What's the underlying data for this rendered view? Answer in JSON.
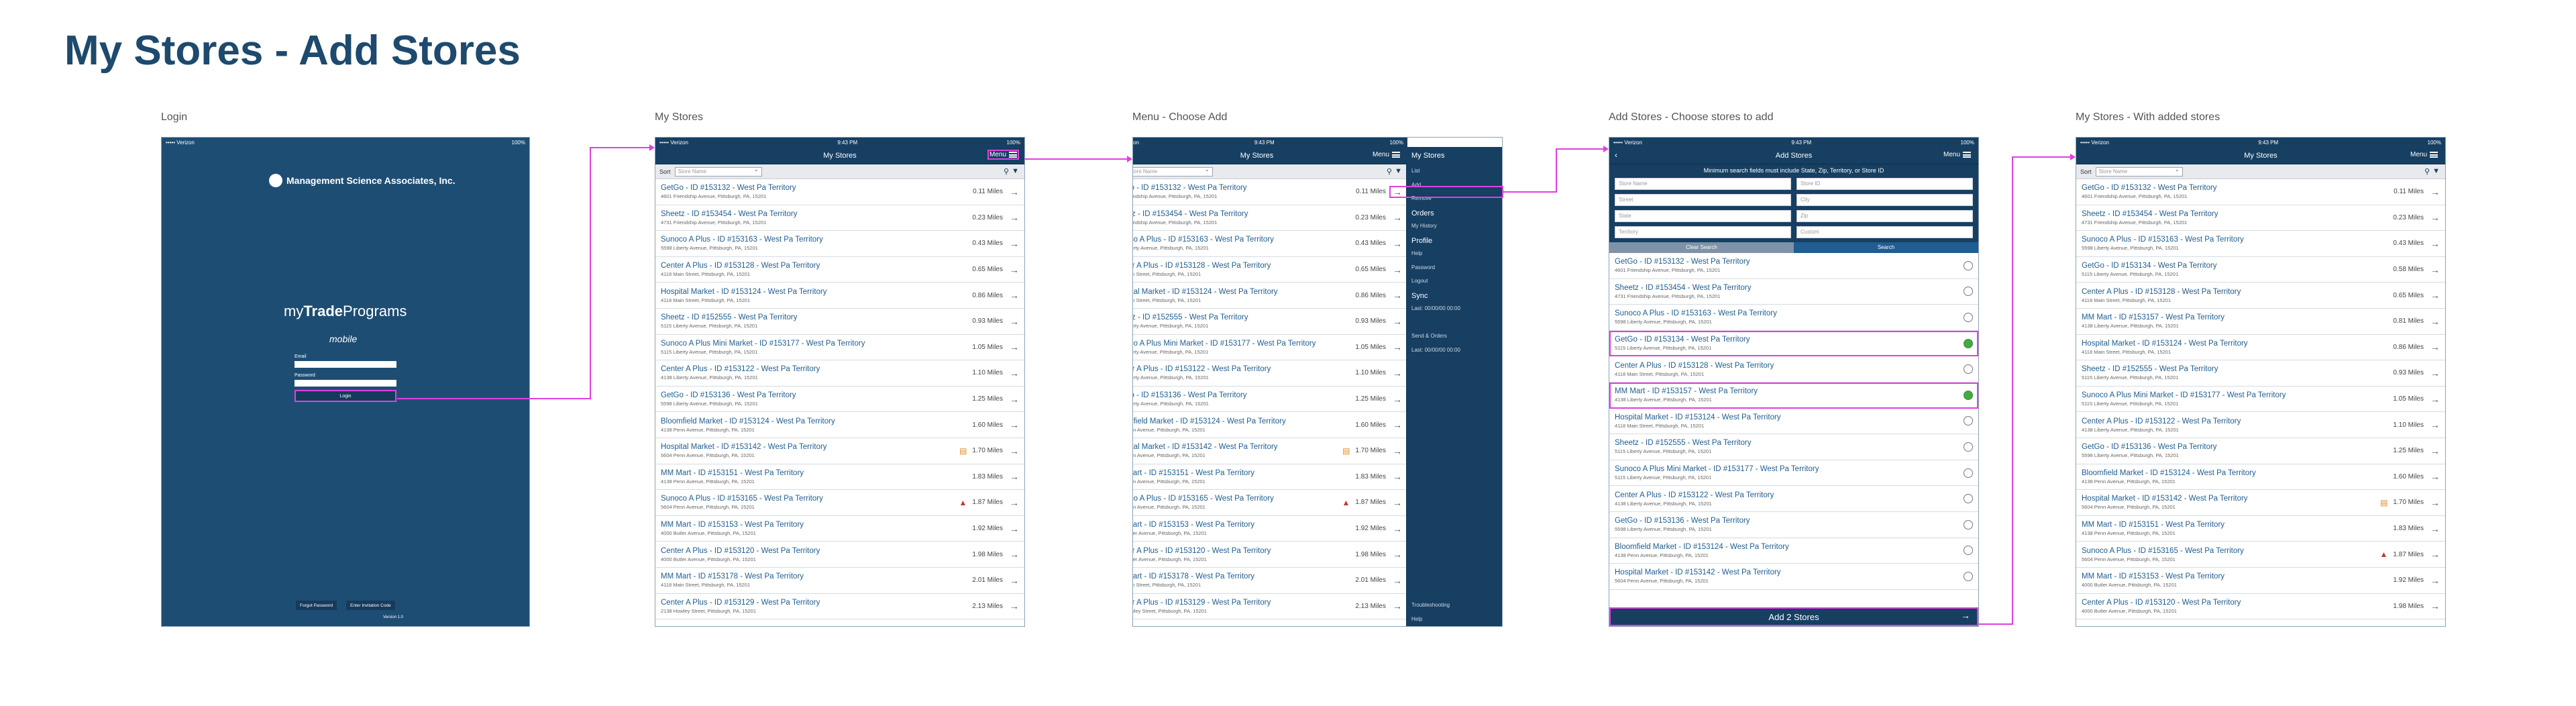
{
  "title": "My Stores - Add Stores",
  "labels": {
    "login": "Login",
    "my_stores": "My Stores",
    "menu_choose_add": "Menu - Choose Add",
    "add_stores": "Add Stores - Choose stores to add",
    "with_added": "My Stores - With added stores"
  },
  "status": {
    "carrier": "••••• Verizon",
    "time": "9:43 PM",
    "battery": "100%"
  },
  "login": {
    "company": "Management Science Associates, Inc.",
    "brand_my": "my",
    "brand_trade": "Trade",
    "brand_programs": "Programs",
    "brand_sub": "mobile",
    "email_label": "Email",
    "password_label": "Password",
    "login_button": "Login",
    "forgot_button": "Forgot Password",
    "invitation_button": "Enter Invitation Code",
    "version": "Version 1.0"
  },
  "nav": {
    "my_stores_title": "My Stores",
    "add_stores_title": "Add Stores",
    "menu_label": "Menu"
  },
  "sort": {
    "label": "Sort",
    "placeholder": "Store Name"
  },
  "stores": [
    {
      "name": "GetGo - ID #153132 - West Pa Territory",
      "addr": "4601 Friendship Avenue, Pittsburgh, PA, 15201",
      "dist": "0.11 Miles",
      "badge": ""
    },
    {
      "name": "Sheetz - ID #153454 - West Pa Territory",
      "addr": "4731 Friendship Avenue, Pittsburgh, PA, 15201",
      "dist": "0.23 Miles",
      "badge": ""
    },
    {
      "name": "Sunoco A Plus - ID #153163 - West Pa Territory",
      "addr": "5598 Liberty Avenue, Pittsburgh, PA, 15201",
      "dist": "0.43 Miles",
      "badge": ""
    },
    {
      "name": "Center A Plus - ID #153128 - West Pa Territory",
      "addr": "4118 Main Street, Pittsburgh, PA, 15201",
      "dist": "0.65 Miles",
      "badge": ""
    },
    {
      "name": "Hospital Market - ID #153124 - West Pa Territory",
      "addr": "4118 Main Street, Pittsburgh, PA, 15201",
      "dist": "0.86 Miles",
      "badge": ""
    },
    {
      "name": "Sheetz - ID #152555 - West Pa Territory",
      "addr": "5115 Liberty Avenue, Pittsburgh, PA, 15201",
      "dist": "0.93 Miles",
      "badge": ""
    },
    {
      "name": "Sunoco A Plus Mini Market - ID #153177 - West Pa Territory",
      "addr": "5115 Liberty Avenue, Pittsburgh, PA, 15201",
      "dist": "1.05 Miles",
      "badge": ""
    },
    {
      "name": "Center A Plus - ID #153122 - West Pa Territory",
      "addr": "4138 Liberty Avenue, Pittsburgh, PA, 15201",
      "dist": "1.10 Miles",
      "badge": ""
    },
    {
      "name": "GetGo - ID #153136 - West Pa Territory",
      "addr": "5598 Liberty Avenue, Pittsburgh, PA, 15201",
      "dist": "1.25 Miles",
      "badge": ""
    },
    {
      "name": "Bloomfield Market - ID #153124 - West Pa Territory",
      "addr": "4138 Penn Avenue, Pittsburgh, PA, 15201",
      "dist": "1.60 Miles",
      "badge": ""
    },
    {
      "name": "Hospital Market - ID #153142 - West Pa Territory",
      "addr": "5604 Penn Avenue, Pittsburgh, PA, 15201",
      "dist": "1.70 Miles",
      "badge": "note"
    },
    {
      "name": "MM Mart - ID #153151 - West Pa Territory",
      "addr": "4138 Penn Avenue, Pittsburgh, PA, 15201",
      "dist": "1.83 Miles",
      "badge": ""
    },
    {
      "name": "Sunoco A Plus - ID #153165 - West Pa Territory",
      "addr": "5604 Penn Avenue, Pittsburgh, PA, 15201",
      "dist": "1.87 Miles",
      "badge": "warn"
    },
    {
      "name": "MM Mart - ID #153153 - West Pa Territory",
      "addr": "4000 Butler Avenue, Pittsburgh, PA, 15201",
      "dist": "1.92 Miles",
      "badge": ""
    },
    {
      "name": "Center A Plus - ID #153120 - West Pa Territory",
      "addr": "4000 Butler Avenue, Pittsburgh, PA, 15201",
      "dist": "1.98 Miles",
      "badge": ""
    },
    {
      "name": "MM Mart - ID #153178 - West Pa Territory",
      "addr": "4118 Main Street, Pittsburgh, PA, 15201",
      "dist": "2.01 Miles",
      "badge": ""
    },
    {
      "name": "Center A Plus - ID #153129 - West Pa Territory",
      "addr": "2138 Howley Street, Pittsburgh, PA, 15201",
      "dist": "2.13 Miles",
      "badge": ""
    }
  ],
  "menu_items": [
    {
      "label": "List",
      "big": false
    },
    {
      "label": "Add",
      "big": false
    },
    {
      "label": "Remove",
      "big": false
    },
    {
      "label": "Orders",
      "big": true
    },
    {
      "label": "My History",
      "big": false
    },
    {
      "label": "Profile",
      "big": true
    },
    {
      "label": "Help",
      "big": false
    },
    {
      "label": "Password",
      "big": false
    },
    {
      "label": "Logout",
      "big": false
    },
    {
      "label": "Sync",
      "big": true
    },
    {
      "label": "Last: 00/00/00 00:00",
      "big": false
    },
    {
      "label": "",
      "big": false
    },
    {
      "label": "Send & Orders",
      "big": false
    },
    {
      "label": "Last: 00/00/00 00:00",
      "big": false
    }
  ],
  "menu_bottom": [
    "Troubleshooting",
    "Help"
  ],
  "add": {
    "hint": "Minimum search fields must include State, Zip, Territory, or Store ID",
    "f_store_name": "Store Name",
    "f_store_id": "Store ID",
    "f_street": "Street",
    "f_city": "City",
    "f_state": "State",
    "f_zip": "Zip",
    "f_territory": "Territory",
    "f_custom": "Custom",
    "clear_button": "Clear Search",
    "search_button": "Search",
    "footer": "Add 2 Stores"
  },
  "add_results": [
    {
      "name": "GetGo - ID #153132 - West Pa Territory",
      "addr": "4601 Friendship Avenue, Pittsburgh, PA, 15201",
      "on": false
    },
    {
      "name": "Sheetz - ID #153454 - West Pa Territory",
      "addr": "4731 Friendship Avenue, Pittsburgh, PA, 15201",
      "on": false
    },
    {
      "name": "Sunoco A Plus - ID #153163 - West Pa Territory",
      "addr": "5598 Liberty Avenue, Pittsburgh, PA, 15201",
      "on": false
    },
    {
      "name": "GetGo - ID #153134 - West Pa Territory",
      "addr": "5115 Liberty Avenue, Pittsburgh, PA, 15201",
      "on": true
    },
    {
      "name": "Center A Plus - ID #153128 - West Pa Territory",
      "addr": "4118 Main Street, Pittsburgh, PA, 15201",
      "on": false
    },
    {
      "name": "MM Mart - ID #153157 - West Pa Territory",
      "addr": "4138 Liberty Avenue, Pittsburgh, PA, 15201",
      "on": true
    },
    {
      "name": "Hospital Market - ID #153124 - West Pa Territory",
      "addr": "4118 Main Street, Pittsburgh, PA, 15201",
      "on": false
    },
    {
      "name": "Sheetz - ID #152555 - West Pa Territory",
      "addr": "5115 Liberty Avenue, Pittsburgh, PA, 15201",
      "on": false
    },
    {
      "name": "Sunoco A Plus Mini Market - ID #153177 - West Pa Territory",
      "addr": "5115 Liberty Avenue, Pittsburgh, PA, 15201",
      "on": false
    },
    {
      "name": "Center A Plus - ID #153122 - West Pa Territory",
      "addr": "4138 Liberty Avenue, Pittsburgh, PA, 15201",
      "on": false
    },
    {
      "name": "GetGo - ID #153136 - West Pa Territory",
      "addr": "5598 Liberty Avenue, Pittsburgh, PA, 15201",
      "on": false
    },
    {
      "name": "Bloomfield Market - ID #153124 - West Pa Territory",
      "addr": "4138 Penn Avenue, Pittsburgh, PA, 15201",
      "on": false
    },
    {
      "name": "Hospital Market - ID #153142 - West Pa Territory",
      "addr": "5604 Penn Avenue, Pittsburgh, PA, 15201",
      "on": false
    }
  ],
  "added_stores": [
    {
      "name": "GetGo - ID #153132 - West Pa Territory",
      "addr": "4601 Friendship Avenue, Pittsburgh, PA, 15201",
      "dist": "0.11 Miles",
      "badge": ""
    },
    {
      "name": "Sheetz - ID #153454 - West Pa Territory",
      "addr": "4731 Friendship Avenue, Pittsburgh, PA, 15201",
      "dist": "0.23 Miles",
      "badge": ""
    },
    {
      "name": "Sunoco A Plus - ID #153163 - West Pa Territory",
      "addr": "5598 Liberty Avenue, Pittsburgh, PA, 15201",
      "dist": "0.43 Miles",
      "badge": ""
    },
    {
      "name": "GetGo - ID #153134 - West Pa Territory",
      "addr": "5115 Liberty Avenue, Pittsburgh, PA, 15201",
      "dist": "0.58 Miles",
      "badge": ""
    },
    {
      "name": "Center A Plus - ID #153128 - West Pa Territory",
      "addr": "4118 Main Street, Pittsburgh, PA, 15201",
      "dist": "0.65 Miles",
      "badge": ""
    },
    {
      "name": "MM Mart - ID #153157 - West Pa Territory",
      "addr": "4138 Liberty Avenue, Pittsburgh, PA, 15201",
      "dist": "0.81 Miles",
      "badge": ""
    },
    {
      "name": "Hospital Market - ID #153124 - West Pa Territory",
      "addr": "4118 Main Street, Pittsburgh, PA, 15201",
      "dist": "0.86 Miles",
      "badge": ""
    },
    {
      "name": "Sheetz - ID #152555 - West Pa Territory",
      "addr": "5115 Liberty Avenue, Pittsburgh, PA, 15201",
      "dist": "0.93 Miles",
      "badge": ""
    },
    {
      "name": "Sunoco A Plus Mini Market - ID #153177 - West Pa Territory",
      "addr": "5115 Liberty Avenue, Pittsburgh, PA, 15201",
      "dist": "1.05 Miles",
      "badge": ""
    },
    {
      "name": "Center A Plus - ID #153122 - West Pa Territory",
      "addr": "4138 Liberty Avenue, Pittsburgh, PA, 15201",
      "dist": "1.10 Miles",
      "badge": ""
    },
    {
      "name": "GetGo - ID #153136 - West Pa Territory",
      "addr": "5598 Liberty Avenue, Pittsburgh, PA, 15201",
      "dist": "1.25 Miles",
      "badge": ""
    },
    {
      "name": "Bloomfield Market - ID #153124 - West Pa Territory",
      "addr": "4138 Penn Avenue, Pittsburgh, PA, 15201",
      "dist": "1.60 Miles",
      "badge": ""
    },
    {
      "name": "Hospital Market - ID #153142 - West Pa Territory",
      "addr": "5604 Penn Avenue, Pittsburgh, PA, 15201",
      "dist": "1.70 Miles",
      "badge": "note"
    },
    {
      "name": "MM Mart - ID #153151 - West Pa Territory",
      "addr": "4138 Penn Avenue, Pittsburgh, PA, 15201",
      "dist": "1.83 Miles",
      "badge": ""
    },
    {
      "name": "Sunoco A Plus - ID #153165 - West Pa Territory",
      "addr": "5604 Penn Avenue, Pittsburgh, PA, 15201",
      "dist": "1.87 Miles",
      "badge": "warn"
    },
    {
      "name": "MM Mart - ID #153153 - West Pa Territory",
      "addr": "4000 Butler Avenue, Pittsburgh, PA, 15201",
      "dist": "1.92 Miles",
      "badge": ""
    },
    {
      "name": "Center A Plus - ID #153120 - West Pa Territory",
      "addr": "4000 Butler Avenue, Pittsburgh, PA, 15201",
      "dist": "1.98 Miles",
      "badge": ""
    }
  ],
  "colors": {
    "navy": "#163f62",
    "highlight": "#e040e0",
    "link": "#1f5d92",
    "selected": "#44aa44"
  }
}
